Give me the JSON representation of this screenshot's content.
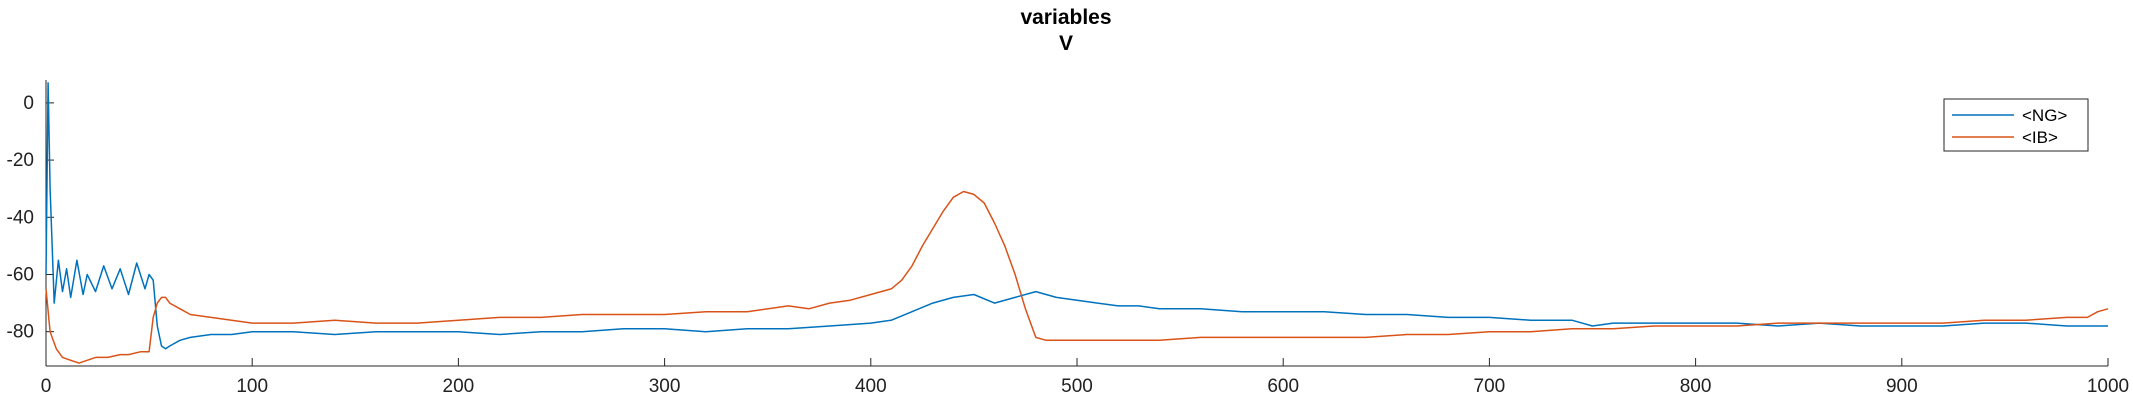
{
  "chart_data": {
    "type": "line",
    "title": "variables",
    "subtitle": "V",
    "xlabel": "",
    "ylabel": "",
    "xlim": [
      0,
      1000
    ],
    "ylim": [
      -92,
      8
    ],
    "xticks": [
      "0",
      "100",
      "200",
      "300",
      "400",
      "500",
      "600",
      "700",
      "800",
      "900",
      "1000"
    ],
    "yticks": [
      "0",
      "-20",
      "-40",
      "-60",
      "-80"
    ],
    "grid": false,
    "legend_position": "top-right",
    "series": [
      {
        "name": "<NG>",
        "color": "#0072BD",
        "x": [
          0,
          1,
          2,
          4,
          6,
          8,
          10,
          12,
          15,
          18,
          20,
          24,
          28,
          32,
          36,
          40,
          44,
          48,
          50,
          52,
          54,
          56,
          58,
          60,
          65,
          70,
          80,
          90,
          100,
          120,
          140,
          160,
          180,
          200,
          220,
          240,
          260,
          280,
          300,
          320,
          340,
          360,
          380,
          400,
          410,
          420,
          430,
          440,
          450,
          460,
          470,
          480,
          490,
          500,
          510,
          520,
          530,
          540,
          560,
          580,
          600,
          620,
          640,
          660,
          680,
          700,
          720,
          740,
          750,
          760,
          780,
          800,
          820,
          840,
          860,
          880,
          900,
          920,
          940,
          960,
          980,
          1000
        ],
        "y": [
          -60,
          7,
          -30,
          -70,
          -55,
          -66,
          -58,
          -68,
          -55,
          -67,
          -60,
          -66,
          -57,
          -65,
          -58,
          -67,
          -56,
          -65,
          -60,
          -62,
          -78,
          -85,
          -86,
          -85,
          -83,
          -82,
          -81,
          -81,
          -80,
          -80,
          -81,
          -80,
          -80,
          -80,
          -81,
          -80,
          -80,
          -79,
          -79,
          -80,
          -79,
          -79,
          -78,
          -77,
          -76,
          -73,
          -70,
          -68,
          -67,
          -70,
          -68,
          -66,
          -68,
          -69,
          -70,
          -71,
          -71,
          -72,
          -72,
          -73,
          -73,
          -73,
          -74,
          -74,
          -75,
          -75,
          -76,
          -76,
          -78,
          -77,
          -77,
          -77,
          -77,
          -78,
          -77,
          -78,
          -78,
          -78,
          -77,
          -77,
          -78,
          -78
        ]
      },
      {
        "name": "<IB>",
        "color": "#D95319",
        "x": [
          0,
          2,
          5,
          8,
          12,
          16,
          20,
          24,
          30,
          36,
          40,
          46,
          50,
          52,
          54,
          56,
          58,
          60,
          65,
          70,
          80,
          90,
          100,
          120,
          140,
          160,
          180,
          200,
          220,
          240,
          260,
          280,
          300,
          320,
          340,
          360,
          370,
          380,
          390,
          400,
          410,
          415,
          420,
          425,
          430,
          435,
          440,
          445,
          450,
          455,
          460,
          465,
          470,
          475,
          480,
          485,
          490,
          500,
          520,
          540,
          560,
          580,
          600,
          620,
          640,
          660,
          680,
          700,
          720,
          740,
          760,
          780,
          800,
          820,
          840,
          860,
          880,
          900,
          920,
          940,
          960,
          980,
          990,
          995,
          1000
        ],
        "y": [
          -65,
          -80,
          -86,
          -89,
          -90,
          -91,
          -90,
          -89,
          -89,
          -88,
          -88,
          -87,
          -87,
          -75,
          -70,
          -68,
          -68,
          -70,
          -72,
          -74,
          -75,
          -76,
          -77,
          -77,
          -76,
          -77,
          -77,
          -76,
          -75,
          -75,
          -74,
          -74,
          -74,
          -73,
          -73,
          -71,
          -72,
          -70,
          -69,
          -67,
          -65,
          -62,
          -57,
          -50,
          -44,
          -38,
          -33,
          -31,
          -32,
          -35,
          -42,
          -50,
          -60,
          -72,
          -82,
          -83,
          -83,
          -83,
          -83,
          -83,
          -82,
          -82,
          -82,
          -82,
          -82,
          -81,
          -81,
          -80,
          -80,
          -79,
          -79,
          -78,
          -78,
          -78,
          -77,
          -77,
          -77,
          -77,
          -77,
          -76,
          -76,
          -75,
          -75,
          -73,
          -72
        ]
      }
    ],
    "annotations": []
  }
}
